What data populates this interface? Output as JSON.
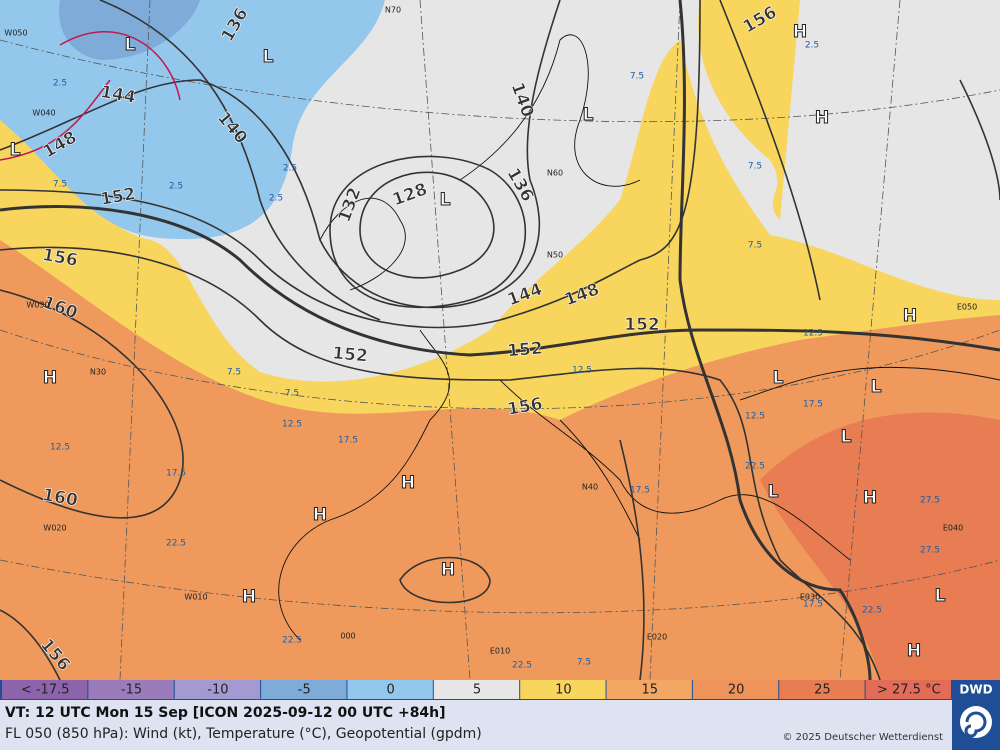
{
  "map": {
    "contour_labels": [
      136,
      144,
      140,
      148,
      152,
      156,
      160,
      132,
      128,
      136,
      140,
      144,
      148,
      152,
      152,
      152,
      156,
      160,
      156,
      156
    ],
    "pressure_centers": [
      "L",
      "L",
      "L",
      "L",
      "L",
      "H",
      "H",
      "H",
      "L",
      "L",
      "L",
      "H",
      "H",
      "H",
      "L",
      "H",
      "H",
      "H",
      "L",
      "H"
    ],
    "isotherm_labels": [
      "2.5",
      "2.5",
      "2.5",
      "2.5",
      "7.5",
      "7.5",
      "7.5",
      "7.5",
      "7.5",
      "7.5",
      "12.5",
      "12.5",
      "17.5",
      "17.5",
      "22.5",
      "12.5",
      "12.5",
      "17.5",
      "22.5",
      "27.5",
      "27.5",
      "17.5",
      "17.5",
      "22.5",
      "22.5",
      "22.5",
      "7.5",
      "12.5",
      "2.5"
    ],
    "grid_labels": [
      "W050",
      "W040",
      "W030",
      "W020",
      "W010",
      "N30",
      "N40",
      "N50",
      "N60",
      "N70",
      "E050",
      "E040",
      "E030",
      "E020",
      "E010",
      "000"
    ]
  },
  "legend": {
    "items": [
      {
        "label": "< -17.5",
        "color": "#8d64ab"
      },
      {
        "label": "-15",
        "color": "#9a7cbb"
      },
      {
        "label": "-10",
        "color": "#a39ad2"
      },
      {
        "label": "-5",
        "color": "#7fabd8"
      },
      {
        "label": "0",
        "color": "#94c7ec"
      },
      {
        "label": "5",
        "color": "#e6e6e6"
      },
      {
        "label": "10",
        "color": "#f8d55c"
      },
      {
        "label": "15",
        "color": "#f2a862"
      },
      {
        "label": "20",
        "color": "#ee935a"
      },
      {
        "label": "25",
        "color": "#e87c52"
      },
      {
        "label": "> 27.5 °C",
        "color": "#e26c58"
      }
    ]
  },
  "footer": {
    "valid_time": "VT: 12 UTC Mon  15 Sep [ICON 2025-09-12 00 UTC +84h]",
    "description": "FL 050 (850 hPa): Wind (kt), Temperature (°C), Geopotential (gpdm)",
    "copyright": "© 2025 Deutscher Wetterdienst",
    "logo": "DWD"
  }
}
